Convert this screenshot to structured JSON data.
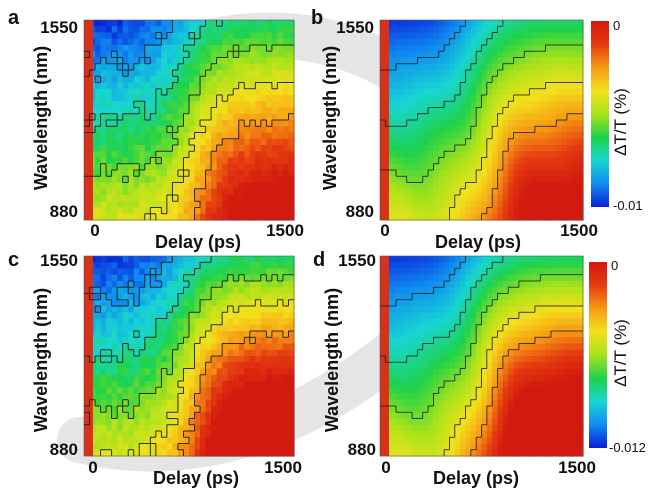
{
  "figure": {
    "axis": {
      "x_label": "Delay (ps)",
      "y_label": "Wavelength (nm)",
      "x_tick_min": "0",
      "x_tick_max": "1500",
      "y_tick_top": "1550",
      "y_tick_bottom": "880",
      "colorbar_label": "ΔT/T (%)"
    },
    "colorbars": [
      {
        "panel": "b",
        "max_label": "0",
        "min_label": "-0.01"
      },
      {
        "panel": "d",
        "max_label": "0",
        "min_label": "-0.012"
      }
    ],
    "colors": {
      "colormap": [
        "#0a1ed8",
        "#0f8cf0",
        "#18d6d2",
        "#1fd24a",
        "#a8e21a",
        "#f2e11c",
        "#f79a14",
        "#e43a10",
        "#d21a0e"
      ],
      "pump_edge": "#d9301a",
      "contour": "#1a1a1a"
    }
  },
  "chart_data": [
    {
      "panel": "a",
      "type": "heatmap",
      "variant": "experiment",
      "x": [
        0,
        1500
      ],
      "xlabel": "Delay (ps)",
      "xlim": [
        0,
        1500
      ],
      "y": [
        880,
        1550
      ],
      "ylabel": "Wavelength (nm)",
      "ylim": [
        880,
        1550
      ],
      "value_range": [
        -0.01,
        0
      ],
      "colorbar_label": "ΔT/T (%)",
      "noise": true
    },
    {
      "panel": "b",
      "type": "heatmap",
      "variant": "model",
      "x": [
        0,
        1500
      ],
      "xlabel": "Delay (ps)",
      "xlim": [
        0,
        1500
      ],
      "y": [
        880,
        1550
      ],
      "ylabel": "Wavelength (nm)",
      "ylim": [
        880,
        1550
      ],
      "value_range": [
        -0.01,
        0
      ],
      "colorbar_label": "ΔT/T (%)",
      "noise": false
    },
    {
      "panel": "c",
      "type": "heatmap",
      "variant": "experiment",
      "x": [
        0,
        1500
      ],
      "xlabel": "Delay (ps)",
      "xlim": [
        0,
        1500
      ],
      "y": [
        880,
        1550
      ],
      "ylabel": "Wavelength (nm)",
      "ylim": [
        880,
        1550
      ],
      "value_range": [
        -0.012,
        0
      ],
      "colorbar_label": "ΔT/T (%)",
      "noise": true
    },
    {
      "panel": "d",
      "type": "heatmap",
      "variant": "model",
      "x": [
        0,
        1500
      ],
      "xlabel": "Delay (ps)",
      "xlim": [
        0,
        1500
      ],
      "y": [
        880,
        1550
      ],
      "ylabel": "Wavelength (nm)",
      "ylim": [
        880,
        1550
      ],
      "value_range": [
        -0.012,
        0
      ],
      "colorbar_label": "ΔT/T (%)",
      "noise": false
    }
  ]
}
